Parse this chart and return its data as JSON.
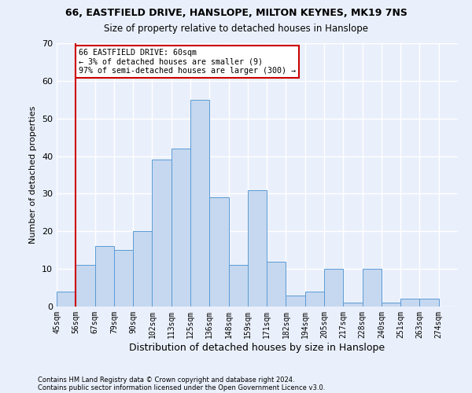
{
  "title1": "66, EASTFIELD DRIVE, HANSLOPE, MILTON KEYNES, MK19 7NS",
  "title2": "Size of property relative to detached houses in Hanslope",
  "xlabel": "Distribution of detached houses by size in Hanslope",
  "ylabel": "Number of detached properties",
  "footnote1": "Contains HM Land Registry data © Crown copyright and database right 2024.",
  "footnote2": "Contains public sector information licensed under the Open Government Licence v3.0.",
  "bar_labels": [
    "45sqm",
    "56sqm",
    "67sqm",
    "79sqm",
    "90sqm",
    "102sqm",
    "113sqm",
    "125sqm",
    "136sqm",
    "148sqm",
    "159sqm",
    "171sqm",
    "182sqm",
    "194sqm",
    "205sqm",
    "217sqm",
    "228sqm",
    "240sqm",
    "251sqm",
    "263sqm",
    "274sqm"
  ],
  "bar_heights": [
    4,
    11,
    16,
    15,
    20,
    39,
    42,
    55,
    29,
    11,
    31,
    12,
    3,
    4,
    10,
    1,
    10,
    1,
    2,
    2,
    0
  ],
  "bar_color": "#c5d8f0",
  "bar_edge_color": "#5b9bd5",
  "bg_color": "#eaf0fb",
  "grid_color": "#ffffff",
  "vline_x": 1,
  "annotation_text": "66 EASTFIELD DRIVE: 60sqm\n← 3% of detached houses are smaller (9)\n97% of semi-detached houses are larger (300) →",
  "annotation_box_color": "#ffffff",
  "annotation_box_edge": "#cc0000",
  "vline_color": "#cc0000",
  "ylim": [
    0,
    70
  ],
  "yticks": [
    0,
    10,
    20,
    30,
    40,
    50,
    60,
    70
  ]
}
